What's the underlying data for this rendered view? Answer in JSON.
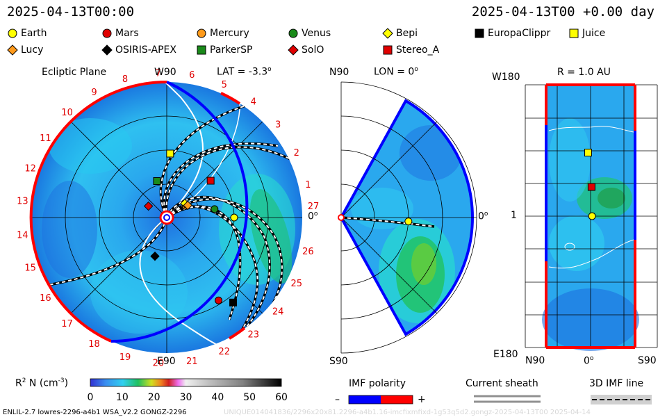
{
  "header": {
    "left_time": "2025-04-13T00:00",
    "right_time": "2025-04-13T00 +0.00 day"
  },
  "legend": [
    {
      "name": "Earth",
      "shape": "circle",
      "color": "#ffff00"
    },
    {
      "name": "Mars",
      "shape": "circle",
      "color": "#e00000"
    },
    {
      "name": "Mercury",
      "shape": "circle",
      "color": "#ff9a1a"
    },
    {
      "name": "Venus",
      "shape": "circle",
      "color": "#1a8a1a"
    },
    {
      "name": "Bepi",
      "shape": "diamond",
      "color": "#ffff00"
    },
    {
      "name": "EuropaClippr",
      "shape": "square",
      "color": "#000000"
    },
    {
      "name": "Juice",
      "shape": "square",
      "color": "#ffff00"
    },
    {
      "name": "Lucy",
      "shape": "diamond",
      "color": "#ff9a1a"
    },
    {
      "name": "OSIRIS-APEX",
      "shape": "diamond",
      "color": "#000000"
    },
    {
      "name": "ParkerSP",
      "shape": "square",
      "color": "#1a8a1a"
    },
    {
      "name": "SolO",
      "shape": "diamond",
      "color": "#e00000"
    },
    {
      "name": "Stereo_A",
      "shape": "square",
      "color": "#e00000"
    }
  ],
  "ecliptic": {
    "title": "Ecliptic Plane",
    "lat_label": "LAT = -3.3",
    "top_label": "W90",
    "bottom_label": "E90",
    "right_label": "0",
    "ticks": [
      "27",
      "1",
      "2",
      "3",
      "4",
      "5",
      "6",
      "7",
      "8",
      "9",
      "10",
      "11",
      "12",
      "13",
      "14",
      "15",
      "16",
      "17",
      "18",
      "19",
      "20",
      "21",
      "22",
      "23",
      "24",
      "25",
      "26"
    ]
  },
  "meridional": {
    "top_label": "N90",
    "lon_label": "LON = 0",
    "bottom_label": "S90",
    "right_label": "0"
  },
  "shell": {
    "r_label": "R = 1.0 AU",
    "top_label": "W180",
    "mid_label": "1",
    "bottom_label": "E180",
    "x_left": "N90",
    "x_mid": "0",
    "x_right": "S90"
  },
  "colorbar": {
    "label": "R  N (cm  )",
    "sup1": "2",
    "sup2": "-3",
    "ticks": [
      "0",
      "10",
      "20",
      "30",
      "40",
      "50",
      "60"
    ],
    "range": [
      0,
      60
    ]
  },
  "imf": {
    "title": "IMF polarity",
    "minus": "–",
    "plus": "+",
    "neg_color": "#0000ff",
    "pos_color": "#ff0000"
  },
  "sheath": {
    "title": "Current sheath"
  },
  "imfline": {
    "title": "3D IMF line"
  },
  "footer": {
    "left": "ENLIL-2.7 lowres-2296-a4b1 WSA_V2.2 GONGZ-2296",
    "right": "UNIQUE014041836/2296x20x81.2296-a4b1.16-imcfixmfixd-1g53q5d2.gongz-2025-04-13T00   2025-04-14"
  },
  "chart_data": [
    {
      "type": "heatmap",
      "title": "Ecliptic Plane",
      "bodies": [
        {
          "name": "Earth",
          "r_au": 1.0,
          "lon_deg": 0
        },
        {
          "name": "Mercury",
          "r_au": 0.33,
          "lon_deg": 32
        },
        {
          "name": "Venus",
          "r_au": 0.72,
          "lon_deg": 10
        },
        {
          "name": "Mars",
          "r_au": 1.45,
          "lon_deg": -58
        },
        {
          "name": "Bepi",
          "r_au": 0.34,
          "lon_deg": 38
        },
        {
          "name": "EuropaClippr",
          "r_au": 1.6,
          "lon_deg": -52
        },
        {
          "name": "Juice",
          "r_au": 0.95,
          "lon_deg": 87
        },
        {
          "name": "Lucy",
          "r_au": 0.36,
          "lon_deg": 30
        },
        {
          "name": "OSIRIS-APEX",
          "r_au": 0.6,
          "lon_deg": -107
        },
        {
          "name": "ParkerSP",
          "r_au": 0.56,
          "lon_deg": 105
        },
        {
          "name": "SolO",
          "r_au": 0.32,
          "lon_deg": 148
        },
        {
          "name": "Stereo_A",
          "r_au": 0.85,
          "lon_deg": 40
        }
      ]
    },
    {
      "type": "heatmap",
      "title": "LON = 0",
      "bodies": [
        {
          "name": "Earth",
          "r_au": 1.0,
          "lat_deg": -3.3
        }
      ]
    },
    {
      "type": "heatmap",
      "title": "R = 1.0 AU",
      "bodies": [
        {
          "name": "Juice",
          "lat_deg": 5,
          "lon_deg": 87
        },
        {
          "name": "Stereo_A",
          "lat_deg": -2,
          "lon_deg": 40
        },
        {
          "name": "Earth",
          "lat_deg": -3,
          "lon_deg": 0
        }
      ]
    }
  ]
}
